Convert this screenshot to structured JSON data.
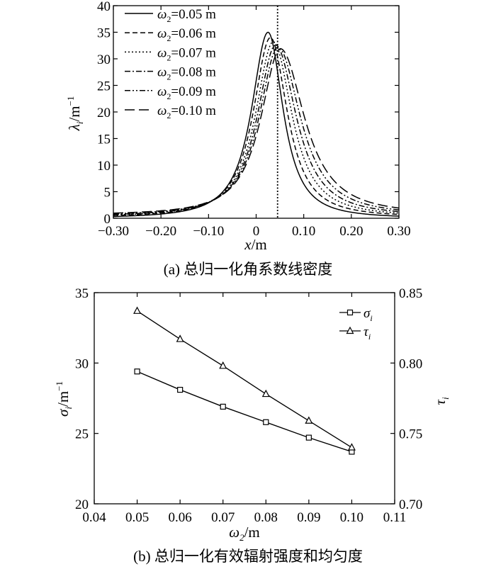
{
  "chart_data": [
    {
      "type": "line",
      "caption": "(a) 总归一化角系数线密度",
      "xlabel": "x/m",
      "ylabel": "λi/m⁻¹",
      "xlim": [
        -0.3,
        0.3
      ],
      "ylim": [
        0,
        40
      ],
      "xticks": [
        "−0.30",
        "−0.20",
        "−0.10",
        "0",
        "0.10",
        "0.20",
        "0.30"
      ],
      "yticks": [
        "0",
        "5",
        "10",
        "15",
        "20",
        "25",
        "30",
        "35",
        "40"
      ],
      "legend_position": "top-left",
      "vline_x": 0.045,
      "series": [
        {
          "name": "ω2=0.05 m",
          "dash": "solid",
          "peak_x": 0.025,
          "peak": 35.0,
          "wl": 0.055,
          "wr": 0.05,
          "tail": 0.0
        },
        {
          "name": "ω2=0.06 m",
          "dash": "dashed",
          "peak_x": 0.03,
          "peak": 34.0,
          "wl": 0.057,
          "wr": 0.056,
          "tail": 0.2
        },
        {
          "name": "ω2=0.07 m",
          "dash": "dotted",
          "peak_x": 0.036,
          "peak": 33.2,
          "wl": 0.059,
          "wr": 0.062,
          "tail": 0.3
        },
        {
          "name": "ω2=0.08 m",
          "dash": "dashdot",
          "peak_x": 0.041,
          "peak": 32.6,
          "wl": 0.061,
          "wr": 0.068,
          "tail": 0.4
        },
        {
          "name": "ω2=0.09 m",
          "dash": "dashdotdot",
          "peak_x": 0.046,
          "peak": 32.2,
          "wl": 0.063,
          "wr": 0.074,
          "tail": 0.5
        },
        {
          "name": "ω2=0.10 m",
          "dash": "longdash",
          "peak_x": 0.051,
          "peak": 31.9,
          "wl": 0.065,
          "wr": 0.08,
          "tail": 0.6
        }
      ],
      "legend_labels": [
        {
          "sym": "ω",
          "sub": "2",
          "rest": "=0.05 m"
        },
        {
          "sym": "ω",
          "sub": "2",
          "rest": "=0.06 m"
        },
        {
          "sym": "ω",
          "sub": "2",
          "rest": "=0.07 m"
        },
        {
          "sym": "ω",
          "sub": "2",
          "rest": "=0.08 m"
        },
        {
          "sym": "ω",
          "sub": "2",
          "rest": "=0.09 m"
        },
        {
          "sym": "ω",
          "sub": "2",
          "rest": "=0.10 m"
        }
      ]
    },
    {
      "type": "line",
      "caption": "(b) 总归一化有效辐射强度和均匀度",
      "xlabel": "ω2/m",
      "ylabel_left": "σi/m⁻¹",
      "ylabel_right": "τi",
      "x": [
        0.05,
        0.06,
        0.07,
        0.08,
        0.09,
        0.1
      ],
      "xlim": [
        0.04,
        0.11
      ],
      "xticks": [
        "0.04",
        "0.05",
        "0.06",
        "0.07",
        "0.08",
        "0.09",
        "0.10",
        "0.11"
      ],
      "ylim_left": [
        20,
        35
      ],
      "yticks_left": [
        "20",
        "25",
        "30",
        "35"
      ],
      "ylim_right": [
        0.7,
        0.85
      ],
      "yticks_right": [
        "0.70",
        "0.75",
        "0.80",
        "0.85"
      ],
      "legend_position": "top-right",
      "series": [
        {
          "name": "σi",
          "axis": "left",
          "marker": "square",
          "values": [
            29.4,
            28.1,
            26.9,
            25.8,
            24.7,
            23.7
          ]
        },
        {
          "name": "τi",
          "axis": "right",
          "marker": "triangle",
          "values": [
            0.837,
            0.817,
            0.798,
            0.778,
            0.759,
            0.74
          ]
        }
      ]
    }
  ]
}
